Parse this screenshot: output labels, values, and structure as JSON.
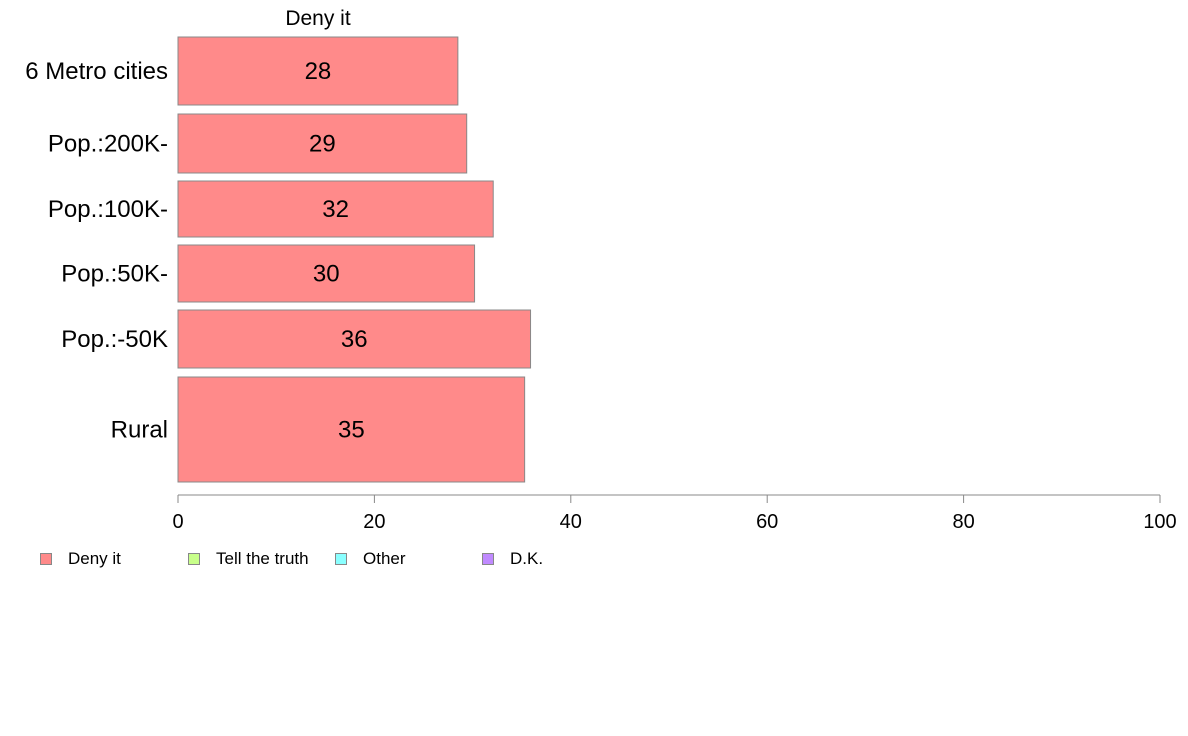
{
  "chart_data": {
    "type": "bar",
    "orientation": "horizontal",
    "title": "Deny it",
    "categories": [
      "6 Metro cities",
      "Pop.:200K-",
      "Pop.:100K-",
      "Pop.:50K-",
      "Pop.:-50K",
      "Rural"
    ],
    "series": [
      {
        "name": "Deny it",
        "values": [
          28.5,
          29.4,
          32.1,
          30.2,
          35.9,
          35.3
        ],
        "labels": [
          "28",
          "29",
          "32",
          "30",
          "36",
          "35"
        ]
      }
    ],
    "xlim": [
      0,
      100
    ],
    "xticks": [
      "0",
      "20",
      "40",
      "60",
      "80",
      "100"
    ],
    "grid": false,
    "legend_position": "bottom-left",
    "legend": [
      {
        "label": "Deny it",
        "color": "#ff8a8a"
      },
      {
        "label": "Tell the truth",
        "color": "#c8ff8a"
      },
      {
        "label": "Other",
        "color": "#8affff"
      },
      {
        "label": "D.K.",
        "color": "#c08aff"
      }
    ],
    "bar_color": "#ff8a8a",
    "bar_edge_color": "#888888"
  }
}
